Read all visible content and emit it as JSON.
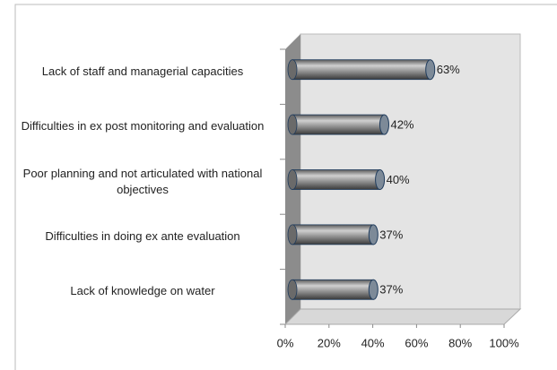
{
  "chart_data": {
    "type": "bar",
    "orientation": "horizontal",
    "categories": [
      "Lack of staff and managerial capacities",
      "Difficulties in ex post monitoring and evaluation",
      "Poor planning and not articulated with national objectives",
      "Difficulties in doing ex ante evaluation",
      "Lack of knowledge on water"
    ],
    "values": [
      63,
      42,
      40,
      37,
      37
    ],
    "value_labels": [
      "63%",
      "42%",
      "40%",
      "37%",
      "37%"
    ],
    "color": "#808080",
    "xlim": [
      0,
      100
    ],
    "xticks": [
      {
        "value": 0,
        "label": "0%"
      },
      {
        "value": 20,
        "label": "20%"
      },
      {
        "value": 40,
        "label": "40%"
      },
      {
        "value": 60,
        "label": "60%"
      },
      {
        "value": 80,
        "label": "80%"
      },
      {
        "value": 100,
        "label": "100%"
      }
    ]
  }
}
